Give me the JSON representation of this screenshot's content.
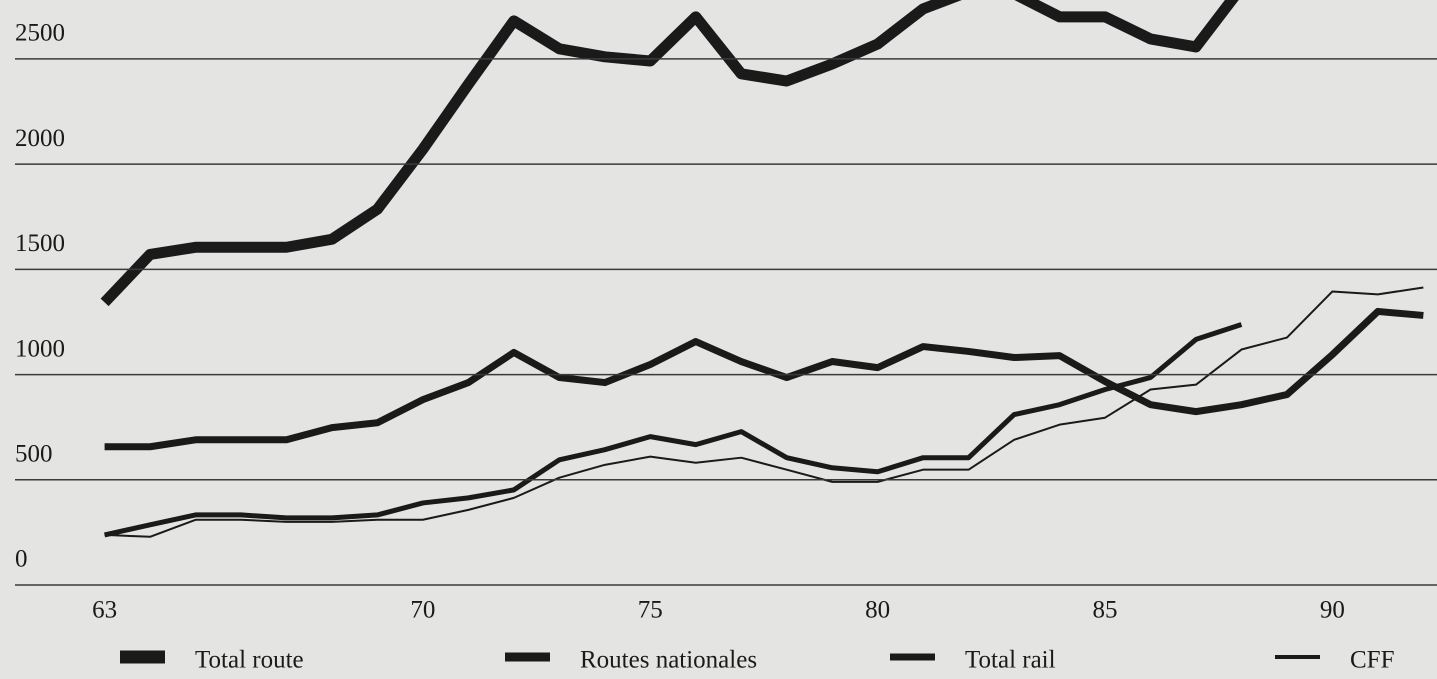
{
  "chart_data": {
    "type": "line",
    "x": [
      63,
      64,
      65,
      66,
      67,
      68,
      69,
      70,
      71,
      72,
      73,
      74,
      75,
      76,
      77,
      78,
      79,
      80,
      81,
      82,
      83,
      84,
      85,
      86,
      87,
      88,
      89,
      90,
      91,
      92
    ],
    "series": [
      {
        "name": "Total route",
        "color": "#1a1a1a",
        "values": [
          1343,
          1571,
          1605,
          1605,
          1605,
          1643,
          1786,
          2071,
          2380,
          2681,
          2548,
          2510,
          2490,
          2700,
          2429,
          2395,
          2476,
          2571,
          2738,
          2820,
          2810,
          2700,
          2700,
          2595,
          2557,
          2840,
          null,
          null,
          null,
          null
        ]
      },
      {
        "name": "Routes nationales",
        "color": "#1a1a1a",
        "values": [
          657,
          657,
          690,
          690,
          690,
          748,
          771,
          881,
          962,
          1105,
          986,
          962,
          1048,
          1157,
          1062,
          986,
          1062,
          1033,
          1133,
          1110,
          1081,
          1090,
          967,
          857,
          824,
          857,
          905,
          1095,
          1300,
          1281
        ]
      },
      {
        "name": "Total rail",
        "color": "#1a1a1a",
        "values": [
          238,
          286,
          333,
          333,
          319,
          319,
          333,
          390,
          414,
          452,
          595,
          643,
          705,
          667,
          729,
          605,
          557,
          538,
          605,
          605,
          810,
          857,
          929,
          986,
          1167,
          1238,
          null,
          null,
          null,
          null
        ]
      },
      {
        "name": "CFF",
        "color": "#1a1a1a",
        "values": [
          238,
          229,
          310,
          310,
          300,
          300,
          310,
          310,
          357,
          414,
          510,
          571,
          610,
          581,
          605,
          548,
          490,
          490,
          548,
          548,
          690,
          762,
          795,
          929,
          952,
          1119,
          1176,
          1395,
          1381,
          1414
        ]
      }
    ],
    "xlim": [
      60.7,
      92.3
    ],
    "xticks": [
      63,
      70,
      75,
      80,
      85,
      90
    ],
    "ylim": [
      0,
      2780
    ],
    "yticks": [
      0,
      500,
      1000,
      1500,
      2000,
      2500
    ],
    "grid": true
  }
}
